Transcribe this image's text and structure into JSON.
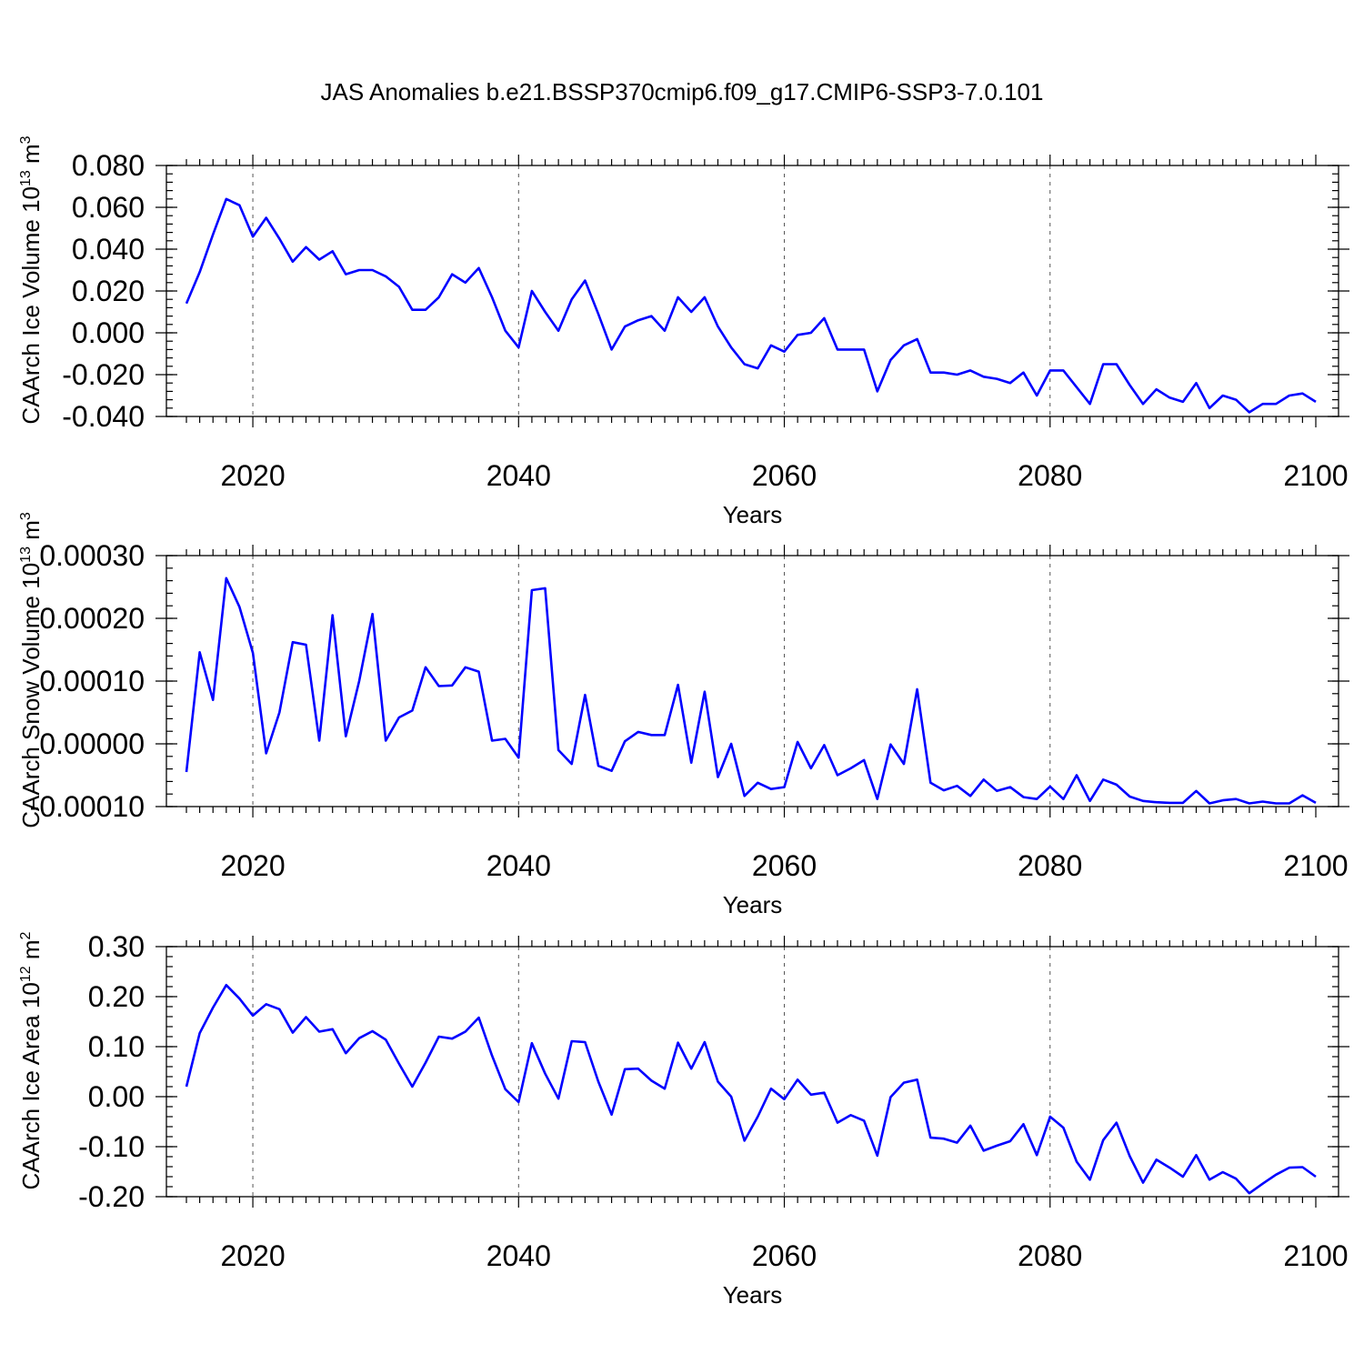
{
  "chart_data": {
    "title": "JAS Anomalies b.e21.BSSP370cmip6.f09_g17.CMIP6-SSP3-7.0.101",
    "panels": [
      {
        "type": "line",
        "ylabel": "CAArch Ice Volume 10",
        "ylabel_sup": "13",
        "ylabel_unit": " m",
        "ylabel_unit_sup": "3",
        "xlabel": "Years",
        "xlim": [
          2015,
          2100
        ],
        "ylim": [
          -0.04,
          0.08
        ],
        "yticks": [
          -0.04,
          -0.02,
          0.0,
          0.02,
          0.04,
          0.06,
          0.08
        ],
        "ytick_labels": [
          "-0.040",
          "-0.020",
          "0.000",
          "0.020",
          "0.040",
          "0.060",
          "0.080"
        ],
        "yminor_step": 0.004,
        "xticks": [
          2020,
          2040,
          2060,
          2080,
          2100
        ],
        "xtick_labels": [
          "2020",
          "2040",
          "2060",
          "2080",
          "2100"
        ],
        "x_start": 2015,
        "values": [
          0.014,
          0.029,
          0.047,
          0.064,
          0.061,
          0.046,
          0.055,
          0.045,
          0.034,
          0.041,
          0.035,
          0.039,
          0.028,
          0.03,
          0.03,
          0.027,
          0.022,
          0.011,
          0.011,
          0.017,
          0.028,
          0.024,
          0.031,
          0.017,
          0.001,
          -0.007,
          0.02,
          0.01,
          0.001,
          0.016,
          0.025,
          0.009,
          -0.008,
          0.003,
          0.006,
          0.008,
          0.001,
          0.017,
          0.01,
          0.017,
          0.003,
          -0.007,
          -0.015,
          -0.017,
          -0.006,
          -0.009,
          -0.001,
          0.0,
          0.007,
          -0.008,
          -0.008,
          -0.008,
          -0.028,
          -0.013,
          -0.006,
          -0.003,
          -0.019,
          -0.019,
          -0.02,
          -0.018,
          -0.021,
          -0.022,
          -0.024,
          -0.019,
          -0.03,
          -0.018,
          -0.018,
          -0.026,
          -0.034,
          -0.015,
          -0.015,
          -0.025,
          -0.034,
          -0.027,
          -0.031,
          -0.033,
          -0.024,
          -0.036,
          -0.03,
          -0.032,
          -0.038,
          -0.034,
          -0.034,
          -0.03,
          -0.029,
          -0.033
        ]
      },
      {
        "type": "line",
        "ylabel": "CAArch Snow Volume 10",
        "ylabel_sup": "13",
        "ylabel_unit": " m",
        "ylabel_unit_sup": "3",
        "xlabel": "Years",
        "xlim": [
          2015,
          2100
        ],
        "ylim": [
          -0.0001,
          0.0003
        ],
        "yticks": [
          -0.0001,
          0.0,
          0.0001,
          0.0002,
          0.0003
        ],
        "ytick_labels": [
          "-0.00010",
          "0.00000",
          "0.00010",
          "0.00020",
          "0.00030"
        ],
        "yminor_step": 2e-05,
        "xticks": [
          2020,
          2040,
          2060,
          2080,
          2100
        ],
        "xtick_labels": [
          "2020",
          "2040",
          "2060",
          "2080",
          "2100"
        ],
        "x_start": 2015,
        "values": [
          -4.5e-05,
          0.000146,
          7e-05,
          0.000264,
          0.000218,
          0.000145,
          -1.5e-05,
          5e-05,
          0.000162,
          0.000158,
          5e-06,
          0.000205,
          1.2e-05,
          0.0001,
          0.000207,
          5e-06,
          4.2e-05,
          5.3e-05,
          0.000122,
          9.2e-05,
          9.3e-05,
          0.000122,
          0.000115,
          5e-06,
          8e-06,
          -2.2e-05,
          0.000245,
          0.000248,
          -1e-05,
          -3.2e-05,
          7.8e-05,
          -3.5e-05,
          -4.3e-05,
          4e-06,
          1.9e-05,
          1.4e-05,
          1.4e-05,
          9.4e-05,
          -3e-05,
          8.3e-05,
          -5.3e-05,
          0.0,
          -8.3e-05,
          -6.2e-05,
          -7.2e-05,
          -6.9e-05,
          3e-06,
          -3.9e-05,
          -2e-06,
          -5e-05,
          -3.9e-05,
          -2.6e-05,
          -8.8e-05,
          -1e-06,
          -3.2e-05,
          8.7e-05,
          -6.2e-05,
          -7.4e-05,
          -6.7e-05,
          -8.3e-05,
          -5.7e-05,
          -7.5e-05,
          -6.9e-05,
          -8.5e-05,
          -8.8e-05,
          -6.8e-05,
          -8.8e-05,
          -5e-05,
          -9.1e-05,
          -5.7e-05,
          -6.5e-05,
          -8.4e-05,
          -9.1e-05,
          -9.3e-05,
          -9.4e-05,
          -9.4e-05,
          -7.5e-05,
          -9.5e-05,
          -9e-05,
          -8.8e-05,
          -9.5e-05,
          -9.2e-05,
          -9.5e-05,
          -9.5e-05,
          -8.2e-05,
          -9.4e-05
        ]
      },
      {
        "type": "line",
        "ylabel": "CAArch Ice Area 10",
        "ylabel_sup": "12",
        "ylabel_unit": " m",
        "ylabel_unit_sup": "2",
        "xlabel": "Years",
        "xlim": [
          2015,
          2100
        ],
        "ylim": [
          -0.2,
          0.3
        ],
        "yticks": [
          -0.2,
          -0.1,
          0.0,
          0.1,
          0.2,
          0.3
        ],
        "ytick_labels": [
          "-0.20",
          "-0.10",
          "0.00",
          "0.10",
          "0.20",
          "0.30"
        ],
        "yminor_step": 0.02,
        "xticks": [
          2020,
          2040,
          2060,
          2080,
          2100
        ],
        "xtick_labels": [
          "2020",
          "2040",
          "2060",
          "2080",
          "2100"
        ],
        "x_start": 2015,
        "values": [
          0.02,
          0.127,
          0.178,
          0.223,
          0.196,
          0.162,
          0.185,
          0.175,
          0.128,
          0.159,
          0.13,
          0.135,
          0.087,
          0.117,
          0.131,
          0.114,
          0.066,
          0.02,
          0.068,
          0.12,
          0.116,
          0.13,
          0.158,
          0.082,
          0.015,
          -0.011,
          0.107,
          0.046,
          -0.004,
          0.111,
          0.109,
          0.03,
          -0.036,
          0.055,
          0.056,
          0.032,
          0.016,
          0.108,
          0.056,
          0.109,
          0.03,
          0.0,
          -0.088,
          -0.04,
          0.016,
          -0.005,
          0.034,
          0.004,
          0.008,
          -0.052,
          -0.037,
          -0.048,
          -0.118,
          -0.001,
          0.028,
          0.034,
          -0.082,
          -0.084,
          -0.092,
          -0.058,
          -0.108,
          -0.098,
          -0.089,
          -0.055,
          -0.117,
          -0.04,
          -0.062,
          -0.13,
          -0.166,
          -0.087,
          -0.052,
          -0.119,
          -0.172,
          -0.126,
          -0.142,
          -0.16,
          -0.117,
          -0.166,
          -0.151,
          -0.164,
          -0.193,
          -0.174,
          -0.156,
          -0.142,
          -0.141,
          -0.16
        ]
      }
    ]
  }
}
